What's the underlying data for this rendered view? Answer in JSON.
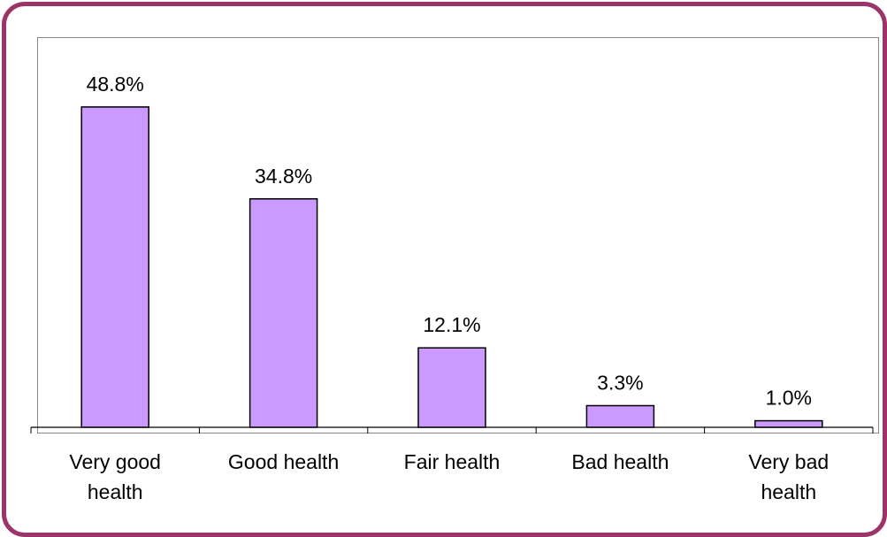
{
  "chart_data": {
    "type": "bar",
    "categories": [
      [
        "Very good",
        "health"
      ],
      [
        "Good health"
      ],
      [
        "Fair health"
      ],
      [
        "Bad health"
      ],
      [
        "Very bad",
        "health"
      ]
    ],
    "values": [
      48.8,
      34.8,
      12.1,
      3.3,
      1.0
    ],
    "value_labels": [
      "48.8%",
      "34.8%",
      "12.1%",
      "3.3%",
      "1.0%"
    ],
    "unit": "%",
    "ylim": [
      0,
      55
    ],
    "grid": false,
    "legend": "none",
    "colors": {
      "bar_fill": "#cc99ff",
      "bar_stroke": "#000000",
      "frame": "#9b3468"
    }
  }
}
